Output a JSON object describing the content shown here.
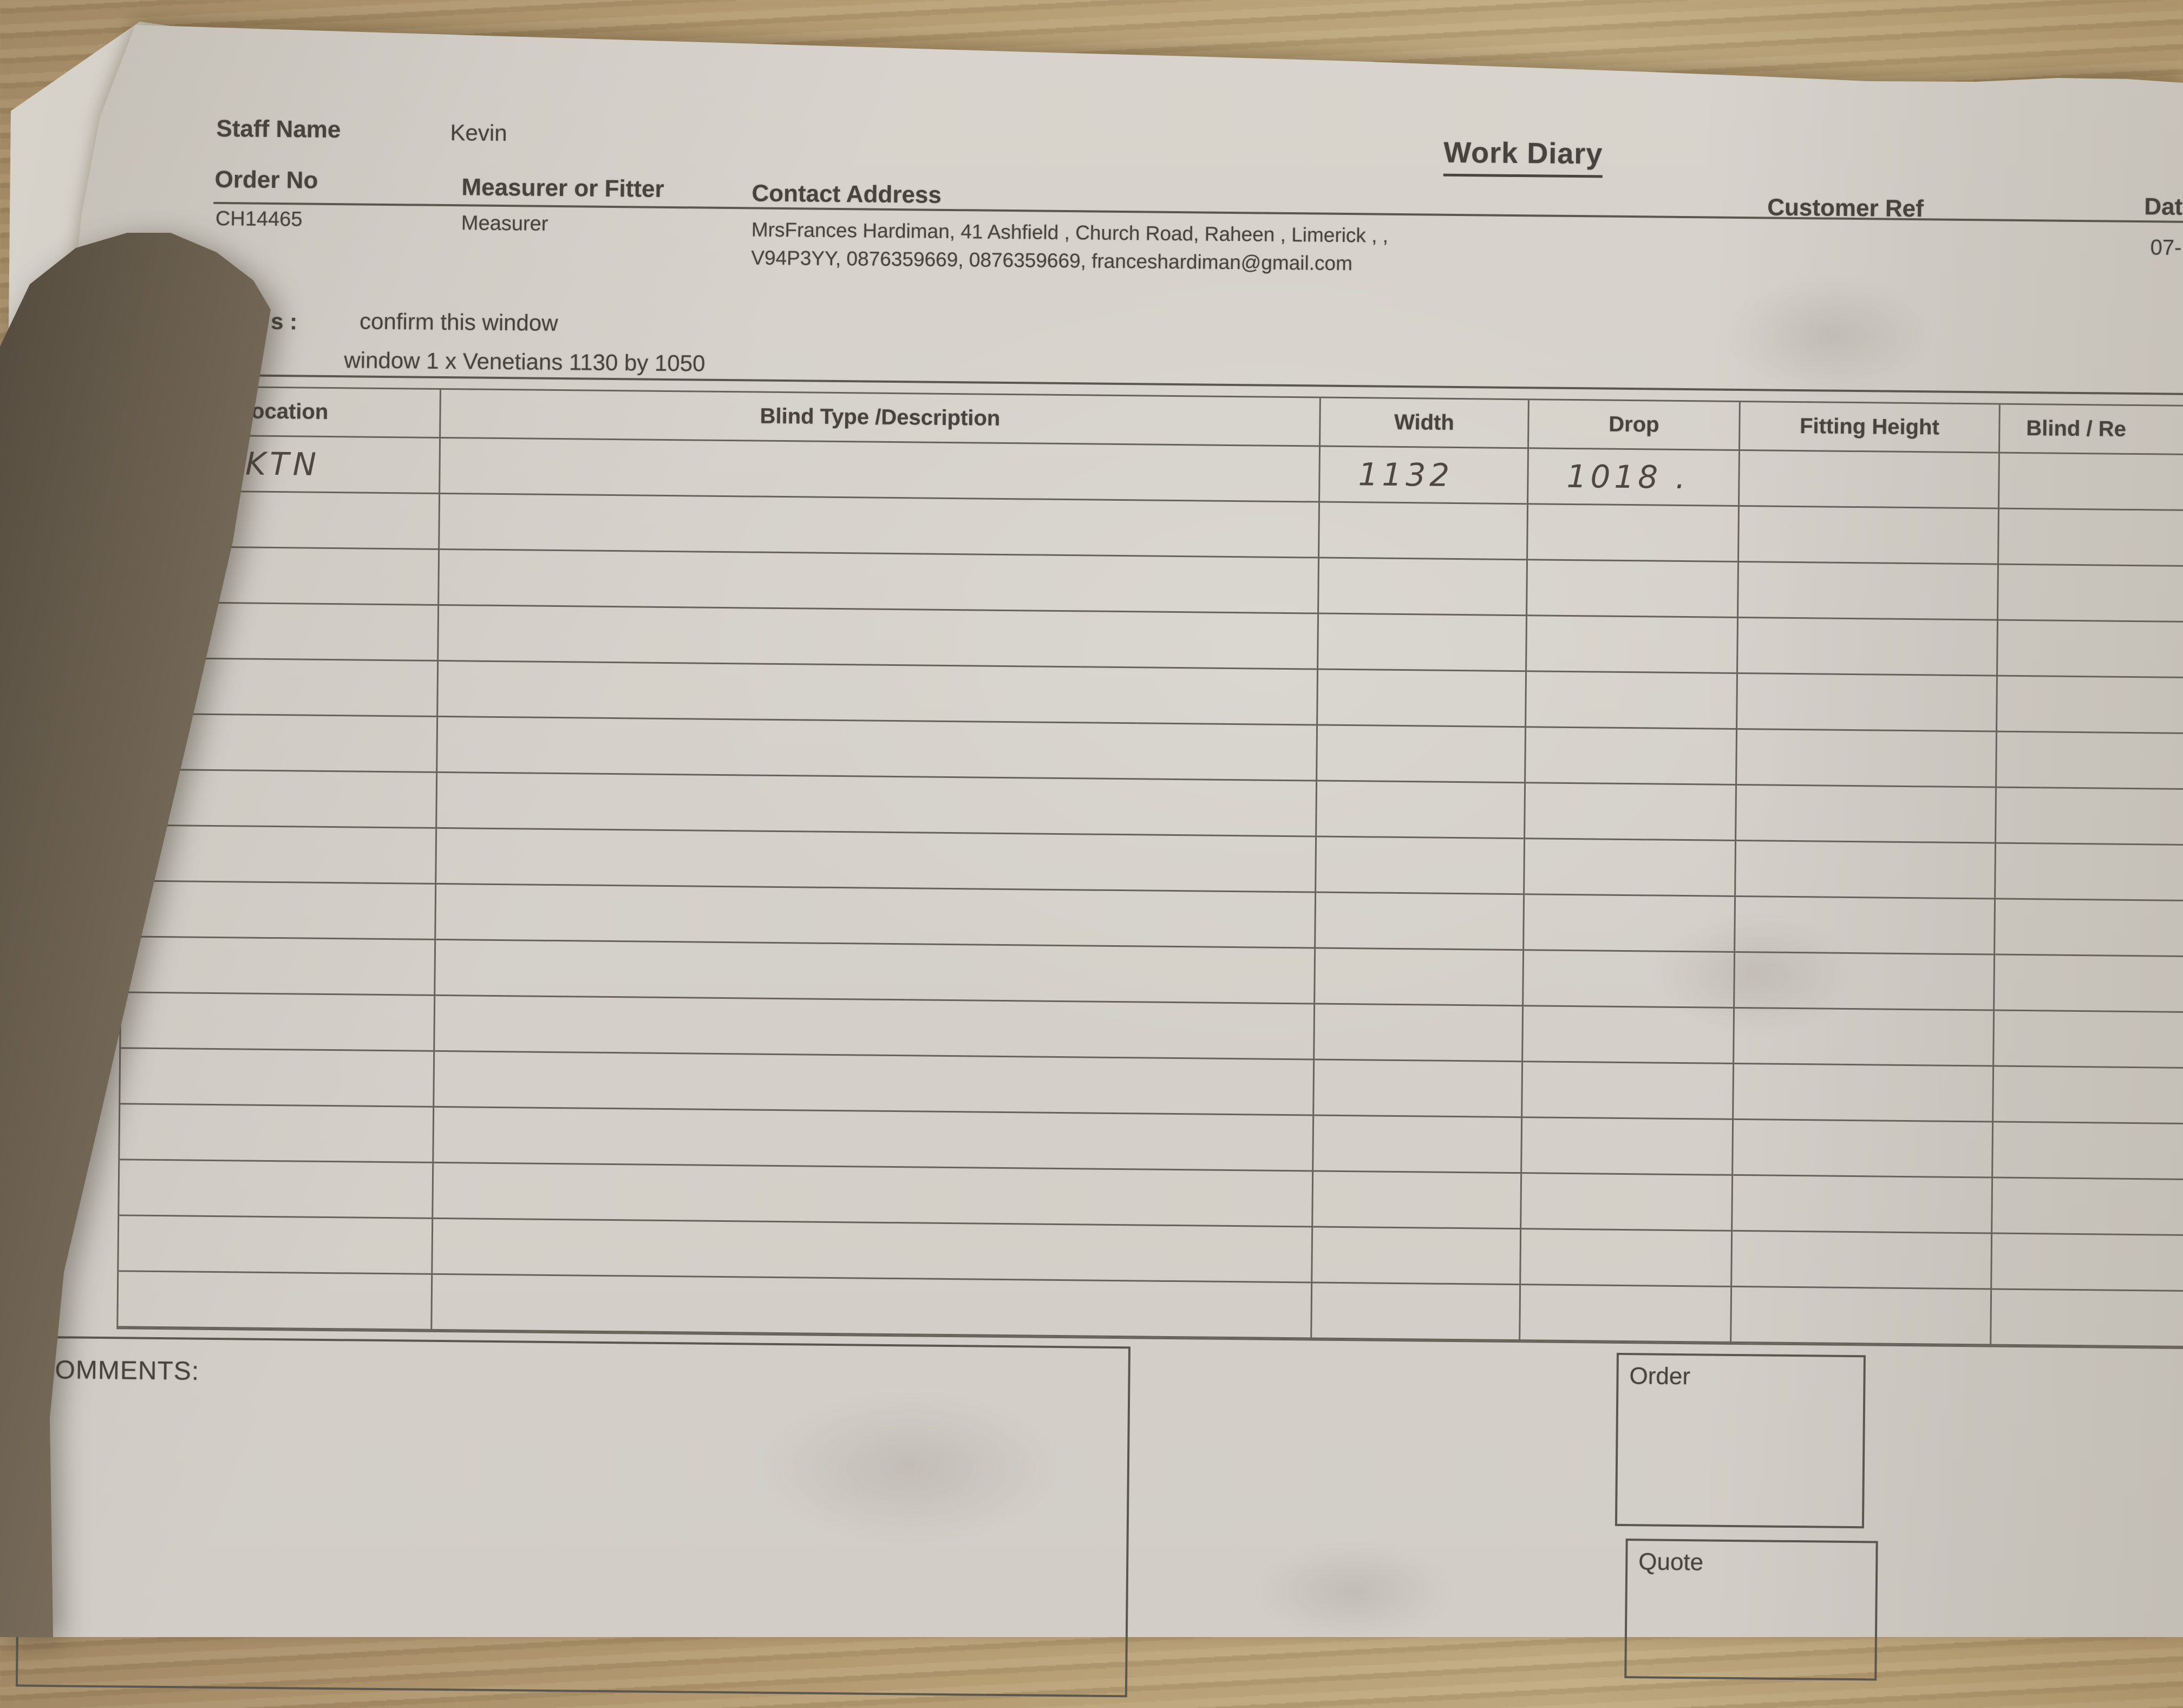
{
  "document": {
    "staff_name": {
      "label": "Staff Name",
      "value": "Kevin"
    },
    "title": "Work Diary",
    "order_no": {
      "label": "Order No",
      "value": "CH14465"
    },
    "measurer_or_fitter": {
      "label": "Measurer or Fitter",
      "value": "Measurer"
    },
    "contact_address": {
      "label": "Contact Address",
      "line1": "MrsFrances Hardiman, 41 Ashfield , Church Road, Raheen , Limerick , ,",
      "line2": "V94P3YY, 0876359669, 0876359669, franceshardiman@gmail.com"
    },
    "customer_ref": {
      "label": "Customer Ref"
    },
    "date": {
      "label": "Dat",
      "value": "07-"
    },
    "notes": {
      "prefix": "s :",
      "line1": "confirm this window",
      "line2": "window 1 x Venetians 1130 by 1050"
    }
  },
  "table": {
    "columns": [
      "Location",
      "Blind Type /Description",
      "Width",
      "Drop",
      "Fitting Height",
      "Blind / Re"
    ],
    "rows": [
      {
        "location": "KTN",
        "blind_type": "",
        "width": "1132",
        "drop": "1018 .",
        "fitting_height": "",
        "blind_re": ""
      },
      {
        "location": "",
        "blind_type": "",
        "width": "",
        "drop": "",
        "fitting_height": "",
        "blind_re": ""
      },
      {
        "location": "",
        "blind_type": "",
        "width": "",
        "drop": "",
        "fitting_height": "",
        "blind_re": ""
      },
      {
        "location": "",
        "blind_type": "",
        "width": "",
        "drop": "",
        "fitting_height": "",
        "blind_re": ""
      },
      {
        "location": "",
        "blind_type": "",
        "width": "",
        "drop": "",
        "fitting_height": "",
        "blind_re": ""
      },
      {
        "location": "",
        "blind_type": "",
        "width": "",
        "drop": "",
        "fitting_height": "",
        "blind_re": ""
      },
      {
        "location": "",
        "blind_type": "",
        "width": "",
        "drop": "",
        "fitting_height": "",
        "blind_re": ""
      },
      {
        "location": "",
        "blind_type": "",
        "width": "",
        "drop": "",
        "fitting_height": "",
        "blind_re": ""
      },
      {
        "location": "",
        "blind_type": "",
        "width": "",
        "drop": "",
        "fitting_height": "",
        "blind_re": ""
      },
      {
        "location": "",
        "blind_type": "",
        "width": "",
        "drop": "",
        "fitting_height": "",
        "blind_re": ""
      },
      {
        "location": "",
        "blind_type": "",
        "width": "",
        "drop": "",
        "fitting_height": "",
        "blind_re": ""
      },
      {
        "location": "",
        "blind_type": "",
        "width": "",
        "drop": "",
        "fitting_height": "",
        "blind_re": ""
      },
      {
        "location": "",
        "blind_type": "",
        "width": "",
        "drop": "",
        "fitting_height": "",
        "blind_re": ""
      },
      {
        "location": "",
        "blind_type": "",
        "width": "",
        "drop": "",
        "fitting_height": "",
        "blind_re": ""
      },
      {
        "location": "",
        "blind_type": "",
        "width": "",
        "drop": "",
        "fitting_height": "",
        "blind_re": ""
      },
      {
        "location": "",
        "blind_type": "",
        "width": "",
        "drop": "",
        "fitting_height": "",
        "blind_re": ""
      }
    ]
  },
  "footer": {
    "comments_label": "OMMENTS:",
    "order_label": "Order",
    "quote_label": "Quote"
  },
  "colors": {
    "paper": "#d6d2cb",
    "wood": "#a8906a",
    "ink": "#48443d",
    "table_line": "#67625a",
    "metal_highlight": "#f6efdd"
  }
}
